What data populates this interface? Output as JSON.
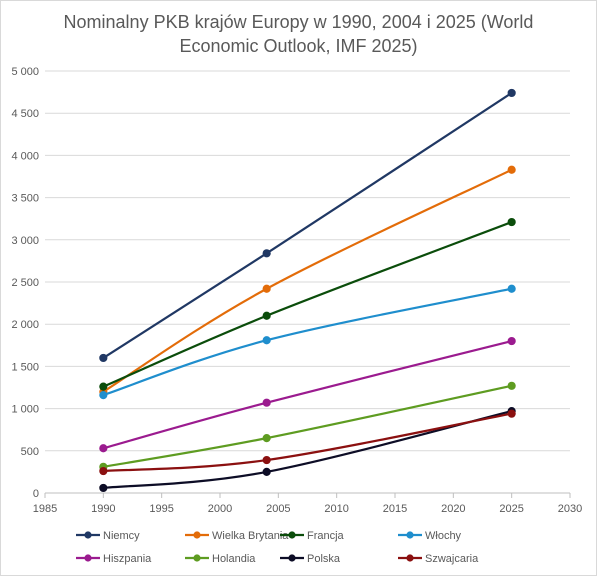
{
  "chart_data": {
    "type": "line",
    "title": "Nominalny PKB krajów Europy w 1990, 2004 i 2025 (World Economic Outlook, IMF 2025)",
    "title_lines": [
      "Nominalny PKB krajów Europy w 1990, 2004 i 2025 (World",
      "Economic Outlook, IMF 2025)"
    ],
    "xlabel": "",
    "ylabel": "",
    "x_ticks": [
      1985,
      1990,
      1995,
      2000,
      2005,
      2010,
      2015,
      2020,
      2025,
      2030
    ],
    "y_ticks": [
      0,
      500,
      1000,
      1500,
      2000,
      2500,
      3000,
      3500,
      4000,
      4500,
      5000
    ],
    "y_tick_labels": [
      "0",
      "500",
      "1 000",
      "1 500",
      "2 000",
      "2 500",
      "3 000",
      "3 500",
      "4 000",
      "4 500",
      "5 000"
    ],
    "xlim": [
      1985,
      2030
    ],
    "ylim": [
      0,
      5000
    ],
    "grid": "horizontal",
    "legend_position": "bottom",
    "smooth": true,
    "series": [
      {
        "name": "Niemcy",
        "color": "#203864",
        "x": [
          1990,
          2004,
          2025
        ],
        "values": [
          1600,
          2840,
          4740
        ]
      },
      {
        "name": "Wielka Brytania",
        "color": "#e36c09",
        "x": [
          1990,
          2004,
          2025
        ],
        "values": [
          1200,
          2420,
          3830
        ]
      },
      {
        "name": "Francja",
        "color": "#0b4d0b",
        "x": [
          1990,
          2004,
          2025
        ],
        "values": [
          1260,
          2100,
          3210
        ]
      },
      {
        "name": "Włochy",
        "color": "#1f8ecd",
        "x": [
          1990,
          2004,
          2025
        ],
        "values": [
          1160,
          1810,
          2420
        ]
      },
      {
        "name": "Hiszpania",
        "color": "#9b1b8f",
        "x": [
          1990,
          2004,
          2025
        ],
        "values": [
          530,
          1070,
          1800
        ]
      },
      {
        "name": "Holandia",
        "color": "#5e9c21",
        "x": [
          1990,
          2004,
          2025
        ],
        "values": [
          310,
          650,
          1270
        ]
      },
      {
        "name": "Polska",
        "color": "#0d0d26",
        "x": [
          1990,
          2004,
          2025
        ],
        "values": [
          60,
          250,
          970
        ]
      },
      {
        "name": "Szwajcaria",
        "color": "#8b1010",
        "x": [
          1990,
          2004,
          2025
        ],
        "values": [
          260,
          390,
          940
        ]
      }
    ]
  }
}
